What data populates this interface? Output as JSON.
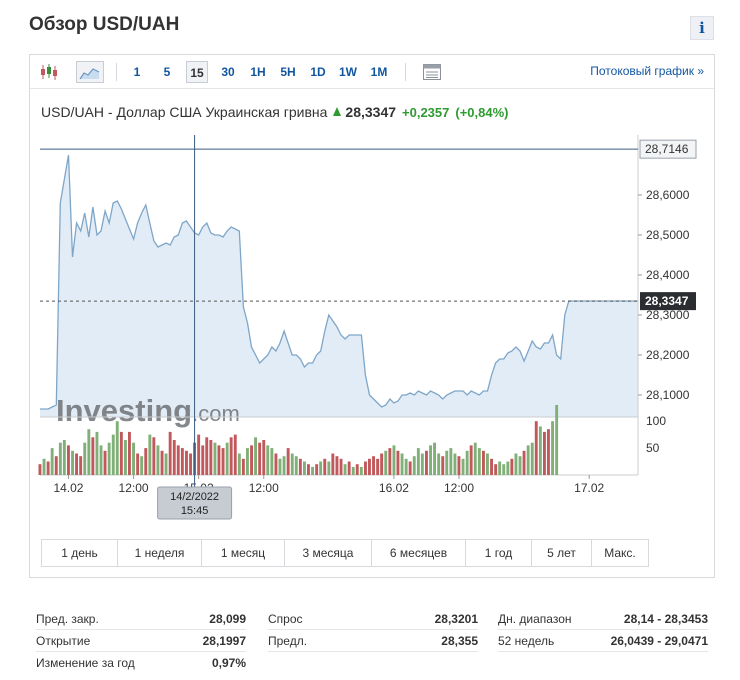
{
  "page": {
    "title": "Обзор USD/UAH",
    "info_label": "i"
  },
  "toolbar": {
    "intervals": [
      "1",
      "5",
      "15",
      "30",
      "1H",
      "5H",
      "1D",
      "1W",
      "1M"
    ],
    "active_interval": "15",
    "stream_link": "Потоковый график »"
  },
  "instrument": {
    "name": "USD/UAH - Доллар США Украинская гривна",
    "price": "28,3347",
    "change": "+0,2357",
    "change_pct": "(+0,84%)",
    "accent_color": "#2e9b30"
  },
  "watermark": {
    "brand": "Investing",
    "suffix": ".com"
  },
  "chart_data": {
    "type": "area",
    "y_ticks": [
      "28,6000",
      "28,5000",
      "28,4000",
      "28,3000",
      "28,2000",
      "28,1000"
    ],
    "y_tick_values": [
      28.6,
      28.5,
      28.4,
      28.3,
      28.2,
      28.1
    ],
    "ylim": [
      28.045,
      28.73
    ],
    "high_label": "28,7146",
    "high_value": 28.7146,
    "last_label": "28,3347",
    "last_value": 28.3347,
    "x_ticks": [
      "14.02",
      "12:00",
      "15.02",
      "12:00",
      "16.02",
      "12:00",
      "17.02"
    ],
    "x_tick_positions": [
      7,
      23,
      39,
      55,
      87,
      103,
      135
    ],
    "x_count": 148,
    "series_color": "#7ea6c9",
    "fill_color": "#e2ecf6",
    "prices": [
      28.065,
      28.065,
      28.065,
      28.07,
      28.075,
      28.58,
      28.64,
      28.7,
      28.445,
      28.53,
      28.51,
      28.555,
      28.495,
      28.57,
      28.5,
      28.51,
      28.56,
      28.53,
      28.58,
      28.585,
      28.565,
      28.54,
      28.515,
      28.49,
      28.53,
      28.555,
      28.575,
      28.53,
      28.485,
      28.47,
      28.475,
      28.48,
      28.475,
      28.495,
      28.5,
      28.53,
      28.535,
      28.52,
      28.505,
      28.5,
      28.52,
      28.53,
      28.505,
      28.5,
      28.5,
      28.495,
      28.51,
      28.52,
      28.515,
      28.51,
      28.32,
      28.28,
      28.22,
      28.2,
      28.18,
      28.19,
      28.2,
      28.22,
      28.21,
      28.23,
      28.26,
      28.23,
      28.2,
      28.2,
      28.19,
      28.17,
      28.18,
      28.18,
      28.2,
      28.21,
      28.26,
      28.3,
      28.285,
      28.27,
      28.25,
      28.24,
      28.25,
      28.25,
      28.25,
      28.25,
      28.15,
      28.1,
      28.09,
      28.08,
      28.07,
      28.075,
      28.09,
      28.08,
      28.085,
      28.1,
      28.1,
      28.105,
      28.1,
      28.11,
      28.105,
      28.1,
      28.11,
      28.105,
      28.1,
      28.09,
      28.1,
      28.105,
      28.11,
      28.11,
      28.11,
      28.1,
      28.11,
      28.105,
      28.1,
      28.11,
      28.11,
      28.15,
      28.18,
      28.19,
      28.19,
      28.205,
      28.21,
      28.22,
      28.21,
      28.185,
      28.21,
      28.235,
      28.22,
      28.215,
      28.23,
      28.23,
      28.25,
      28.2,
      28.19,
      28.3,
      28.335,
      28.335,
      28.335,
      28.335,
      28.335,
      28.335,
      28.335,
      28.335,
      28.335,
      28.335,
      28.335,
      28.335,
      28.335,
      28.335,
      28.335,
      28.335,
      28.335,
      28.335
    ],
    "volume_ticks": [
      "100",
      "50"
    ],
    "volume_tick_values": [
      100,
      50
    ],
    "volume_max": 130,
    "volume": [
      20,
      30,
      25,
      50,
      35,
      60,
      65,
      55,
      45,
      40,
      35,
      60,
      85,
      70,
      80,
      55,
      45,
      60,
      75,
      100,
      80,
      65,
      80,
      60,
      40,
      35,
      50,
      75,
      70,
      55,
      45,
      40,
      80,
      65,
      55,
      50,
      45,
      40,
      60,
      75,
      55,
      70,
      65,
      60,
      55,
      50,
      60,
      70,
      75,
      40,
      30,
      50,
      55,
      70,
      60,
      65,
      55,
      50,
      40,
      30,
      35,
      50,
      40,
      35,
      30,
      25,
      20,
      15,
      20,
      25,
      30,
      25,
      40,
      35,
      30,
      20,
      25,
      15,
      20,
      15,
      25,
      30,
      35,
      30,
      40,
      45,
      50,
      55,
      45,
      40,
      30,
      25,
      35,
      50,
      40,
      45,
      55,
      60,
      40,
      35,
      45,
      50,
      40,
      35,
      30,
      45,
      55,
      60,
      50,
      45,
      40,
      30,
      20,
      25,
      20,
      25,
      30,
      40,
      35,
      45,
      55,
      60,
      100,
      90,
      80,
      85,
      100,
      130
    ],
    "volume_colors": [
      "#c0585c",
      "#80b078",
      "#c0585c",
      "#80b078",
      "#c0585c",
      "#80b078",
      "#80b078",
      "#c0585c",
      "#80b078",
      "#c0585c",
      "#c0585c",
      "#80b078",
      "#80b078",
      "#c0585c",
      "#80b078",
      "#80b078",
      "#c0585c",
      "#80b078",
      "#80b078",
      "#80b078",
      "#c0585c",
      "#80b078",
      "#c0585c",
      "#80b078",
      "#c0585c",
      "#80b078",
      "#c0585c",
      "#80b078",
      "#c0585c",
      "#80b078",
      "#c0585c",
      "#80b078",
      "#c0585c",
      "#c0585c",
      "#c0585c",
      "#c0585c",
      "#c0585c",
      "#c0585c",
      "#c0585c",
      "#c0585c",
      "#c0585c",
      "#c0585c",
      "#c0585c",
      "#80b078",
      "#c0585c",
      "#c0585c",
      "#80b078",
      "#c0585c",
      "#c0585c",
      "#80b078",
      "#c0585c",
      "#80b078",
      "#c0585c",
      "#80b078",
      "#c0585c",
      "#c0585c",
      "#80b078",
      "#80b078",
      "#c0585c",
      "#80b078",
      "#80b078",
      "#c0585c",
      "#80b078",
      "#80b078",
      "#c0585c",
      "#80b078",
      "#c0585c",
      "#80b078",
      "#c0585c",
      "#80b078",
      "#c0585c",
      "#80b078",
      "#c0585c",
      "#c0585c",
      "#c0585c",
      "#80b078",
      "#c0585c",
      "#80b078",
      "#c0585c",
      "#80b078",
      "#c0585c",
      "#c0585c",
      "#c0585c",
      "#c0585c",
      "#c0585c",
      "#80b078",
      "#c0585c",
      "#80b078",
      "#c0585c",
      "#80b078",
      "#80b078",
      "#c0585c",
      "#80b078",
      "#80b078",
      "#80b078",
      "#c0585c",
      "#80b078",
      "#80b078",
      "#80b078",
      "#c0585c",
      "#80b078",
      "#80b078",
      "#80b078",
      "#c0585c",
      "#80b078",
      "#80b078",
      "#c0585c",
      "#80b078",
      "#80b078",
      "#c0585c",
      "#80b078",
      "#c0585c",
      "#c0585c",
      "#80b078",
      "#80b078",
      "#80b078",
      "#c0585c",
      "#80b078",
      "#80b078",
      "#c0585c",
      "#80b078",
      "#80b078",
      "#c0585c",
      "#80b078",
      "#c0585c",
      "#c0585c",
      "#80b078",
      "#80b078"
    ],
    "crosshair": {
      "x_index": 38,
      "date": "14/2/2022",
      "time": "15:45"
    }
  },
  "ranges": [
    "1 день",
    "1 неделя",
    "1 месяц",
    "3 месяца",
    "6 месяцев",
    "1 год",
    "5 лет",
    "Макс."
  ],
  "stats": [
    {
      "label": "Пред. закр.",
      "value": "28,099"
    },
    {
      "label": "Открытие",
      "value": "28,1997"
    },
    {
      "label": "Изменение за год",
      "value": "0,97%"
    },
    {
      "label": "Спрос",
      "value": "28,3201"
    },
    {
      "label": "Предл.",
      "value": "28,355"
    },
    {
      "label": "Дн. диапазон",
      "value": "28,14 - 28,3453"
    },
    {
      "label": "52 недель",
      "value": "26,0439 - 29,0471"
    }
  ]
}
